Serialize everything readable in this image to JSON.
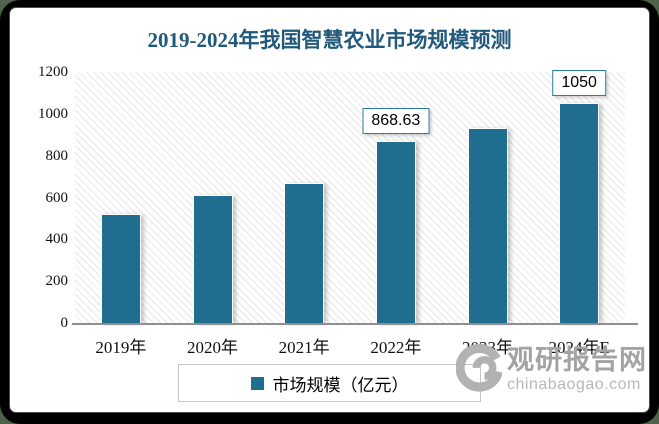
{
  "chart_data": {
    "type": "bar",
    "title": "2019-2024年我国智慧农业市场规模预测",
    "categories": [
      "2019年",
      "2020年",
      "2021年",
      "2022年",
      "2023年",
      "2024年E"
    ],
    "values": [
      520,
      610,
      670,
      868.63,
      930,
      1050
    ],
    "data_labels": [
      "",
      "",
      "",
      "868.63",
      "",
      "1050"
    ],
    "ylim": [
      0,
      1200
    ],
    "yticks": [
      0,
      200,
      400,
      600,
      800,
      1000,
      1200
    ],
    "xlabel": "",
    "ylabel": "",
    "grid": false,
    "plot_background": "diagonal-hatch",
    "legend": {
      "label": "市场规模（亿元）",
      "position": "bottom"
    },
    "colors": {
      "bar": "#1F6E8F",
      "title": "#20597B",
      "label_box_border": "#2B7CA3",
      "axis_line": "#8F8F8F"
    }
  },
  "watermark": {
    "brand": "观研报告网",
    "site": "chinabaogao.com"
  }
}
